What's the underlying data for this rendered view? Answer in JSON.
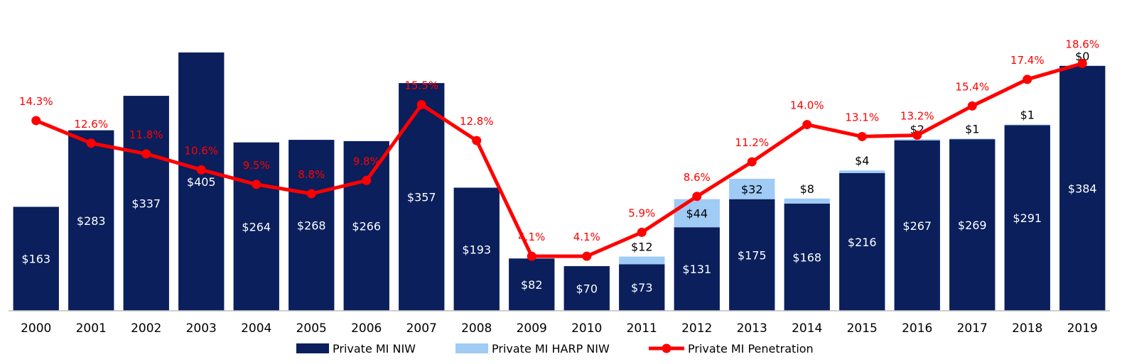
{
  "chart_data": {
    "type": "bar",
    "title": "",
    "xlabel": "",
    "ylabel": "",
    "grid": false,
    "legend_position": "bottom",
    "categories": [
      "2000",
      "2001",
      "2002",
      "2003",
      "2004",
      "2005",
      "2006",
      "2007",
      "2008",
      "2009",
      "2010",
      "2011",
      "2012",
      "2013",
      "2014",
      "2015",
      "2016",
      "2017",
      "2018",
      "2019"
    ],
    "ylim_primary": [
      0,
      465
    ],
    "ylim_secondary_percent": [
      0,
      22.3
    ],
    "series": [
      {
        "name": "Private MI NIW",
        "kind": "stacked-bar",
        "color": "#0a1f5c",
        "values": [
          163,
          283,
          337,
          405,
          264,
          268,
          266,
          357,
          193,
          82,
          70,
          73,
          131,
          175,
          168,
          216,
          267,
          269,
          291,
          384
        ],
        "labels": [
          "$163",
          "$283",
          "$337",
          "$405",
          "$264",
          "$268",
          "$266",
          "$357",
          "$193",
          "$82",
          "$70",
          "$73",
          "$131",
          "$175",
          "$168",
          "$216",
          "$267",
          "$269",
          "$291",
          "$384"
        ]
      },
      {
        "name": "Private MI HARP NIW",
        "kind": "stacked-bar",
        "color": "#9fcbf5",
        "values": [
          0,
          0,
          0,
          0,
          0,
          0,
          0,
          0,
          0,
          0,
          0,
          12,
          44,
          32,
          8,
          4,
          2,
          1,
          1,
          0
        ],
        "labels": [
          "",
          "",
          "",
          "",
          "",
          "",
          "",
          "",
          "",
          "",
          "",
          "$12",
          "$44",
          "$32",
          "$8",
          "$4",
          "$2",
          "$1",
          "$1",
          "$0"
        ]
      },
      {
        "name": "Private MI Penetration",
        "kind": "line",
        "color": "#ff0000",
        "values": [
          14.3,
          12.6,
          11.8,
          10.6,
          9.5,
          8.8,
          9.8,
          15.5,
          12.8,
          4.1,
          4.1,
          5.9,
          8.6,
          11.2,
          14.0,
          13.1,
          13.2,
          15.4,
          17.4,
          18.6
        ],
        "labels": [
          "14.3%",
          "12.6%",
          "11.8%",
          "10.6%",
          "9.5%",
          "8.8%",
          "9.8%",
          "15.5%",
          "12.8%",
          "4.1%",
          "4.1%",
          "5.9%",
          "8.6%",
          "11.2%",
          "14.0%",
          "13.1%",
          "13.2%",
          "15.4%",
          "17.4%",
          "18.6%"
        ]
      }
    ]
  }
}
